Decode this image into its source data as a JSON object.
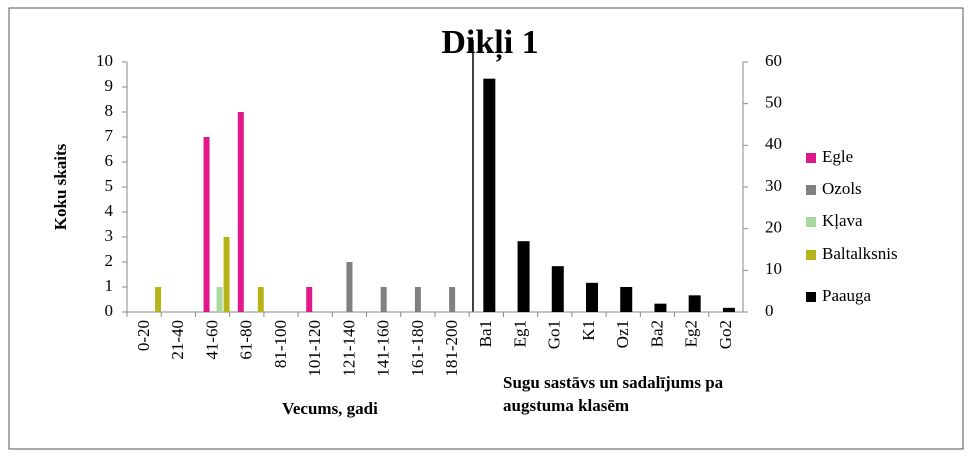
{
  "chart_data": {
    "type": "bar",
    "title": "Dikļi 1",
    "ylabel": "Koku skaits",
    "xlabel": "Vecums, gadi",
    "xlabel2": [
      "Sugu sastāvs un sadalījums  pa",
      "augstuma klasēm"
    ],
    "categories": [
      "0-20",
      "21-40",
      "41-60",
      "61-80",
      "81-100",
      "101-120",
      "121-140",
      "141-160",
      "161-180",
      "181-200",
      "Ba1",
      "Eg1",
      "Go1",
      "K1",
      "Oz1",
      "Ba2",
      "Eg2",
      "Go2"
    ],
    "series": [
      {
        "name": "Egle",
        "color": "#e0188c",
        "values": [
          null,
          null,
          7,
          8,
          null,
          1,
          null,
          null,
          null,
          null,
          null,
          null,
          null,
          null,
          null,
          null,
          null,
          null
        ]
      },
      {
        "name": "Ozols",
        "color": "#808080",
        "values": [
          null,
          null,
          null,
          null,
          null,
          null,
          2,
          1,
          1,
          1,
          null,
          null,
          null,
          null,
          null,
          null,
          null,
          null
        ]
      },
      {
        "name": "Kļava",
        "color": "#a8d8a0",
        "values": [
          null,
          null,
          1,
          null,
          null,
          null,
          null,
          null,
          null,
          null,
          null,
          null,
          null,
          null,
          null,
          null,
          null,
          null
        ]
      },
      {
        "name": "Baltalksnis",
        "color": "#b5b51a",
        "values": [
          1,
          null,
          3,
          1,
          null,
          null,
          null,
          null,
          null,
          null,
          null,
          null,
          null,
          null,
          null,
          null,
          null,
          null
        ]
      },
      {
        "name": "Paauga",
        "color": "#000000",
        "axis": "y2",
        "values": [
          null,
          null,
          null,
          null,
          null,
          null,
          null,
          null,
          null,
          null,
          56,
          17,
          11,
          7,
          6,
          2,
          4,
          1
        ]
      }
    ],
    "ylim": [
      0,
      10
    ],
    "yticks": [
      0,
      1,
      2,
      3,
      4,
      5,
      6,
      7,
      8,
      9,
      10
    ],
    "y2lim": [
      0,
      60
    ],
    "y2ticks": [
      0,
      10,
      20,
      30,
      40,
      50,
      60
    ],
    "legend": "right"
  }
}
